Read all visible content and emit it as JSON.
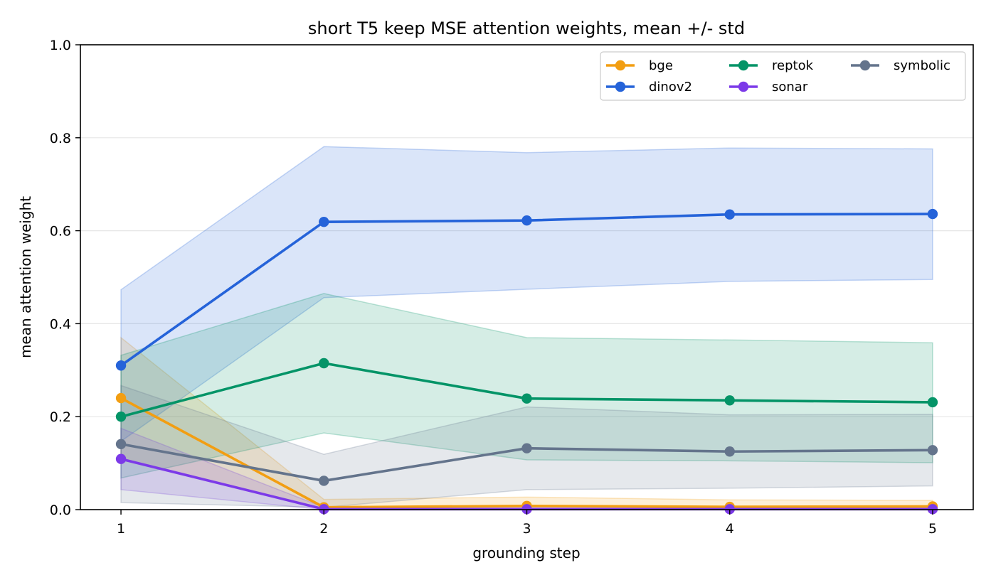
{
  "chart_data": {
    "type": "line",
    "title": "short T5 keep MSE attention weights, mean +/- std",
    "xlabel": "grounding step",
    "ylabel": "mean attention weight",
    "x": [
      1,
      2,
      3,
      4,
      5
    ],
    "xticks": [
      "1",
      "2",
      "3",
      "4",
      "5"
    ],
    "xlim": [
      0.8,
      5.2
    ],
    "ylim": [
      0.0,
      1.0
    ],
    "yticks": [
      "0.0",
      "0.2",
      "0.4",
      "0.6",
      "0.8",
      "1.0"
    ],
    "grid": "horizontal",
    "legend": {
      "placement": "top-right",
      "columns": 3
    },
    "series": [
      {
        "name": "bge",
        "color": "#f29e12",
        "values": [
          0.24,
          0.005,
          0.008,
          0.006,
          0.007
        ],
        "lower": [
          0.11,
          0.0,
          0.0,
          0.0,
          0.0
        ],
        "upper": [
          0.37,
          0.022,
          0.027,
          0.021,
          0.02
        ]
      },
      {
        "name": "dinov2",
        "color": "#2563d9",
        "values": [
          0.31,
          0.619,
          0.622,
          0.635,
          0.636
        ],
        "lower": [
          0.147,
          0.456,
          0.474,
          0.491,
          0.495
        ],
        "upper": [
          0.473,
          0.781,
          0.768,
          0.778,
          0.776
        ]
      },
      {
        "name": "reptok",
        "color": "#049467",
        "values": [
          0.2,
          0.315,
          0.239,
          0.235,
          0.231
        ],
        "lower": [
          0.068,
          0.165,
          0.107,
          0.105,
          0.101
        ],
        "upper": [
          0.332,
          0.465,
          0.37,
          0.365,
          0.359
        ]
      },
      {
        "name": "sonar",
        "color": "#7c3ae8",
        "values": [
          0.109,
          0.001,
          0.001,
          0.001,
          0.001
        ],
        "lower": [
          0.043,
          0.0,
          0.0,
          0.0,
          0.0
        ],
        "upper": [
          0.175,
          0.005,
          0.004,
          0.004,
          0.004
        ]
      },
      {
        "name": "symbolic",
        "color": "#64748c",
        "values": [
          0.141,
          0.062,
          0.132,
          0.125,
          0.128
        ],
        "lower": [
          0.015,
          0.005,
          0.043,
          0.046,
          0.051
        ],
        "upper": [
          0.267,
          0.119,
          0.221,
          0.204,
          0.205
        ]
      }
    ]
  }
}
